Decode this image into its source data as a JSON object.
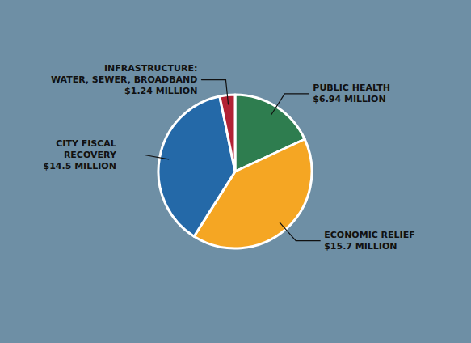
{
  "chart_data": {
    "type": "pie",
    "categories": [
      "PUBLIC HEALTH",
      "ECONOMIC RELIEF",
      "CITY FISCAL\nRECOVERY",
      "INFRASTRUCTURE:\nWATER, SEWER, BROADBAND"
    ],
    "values": [
      6.94,
      15.7,
      14.5,
      1.24
    ],
    "value_labels": [
      "$6.94 MILLION",
      "$15.7 MILLION",
      "$14.5 MILLION",
      "$1.24 MILLION"
    ],
    "colors": [
      "#2e7d4f",
      "#f5a623",
      "#2469a8",
      "#b22234"
    ],
    "data_labels": true
  }
}
